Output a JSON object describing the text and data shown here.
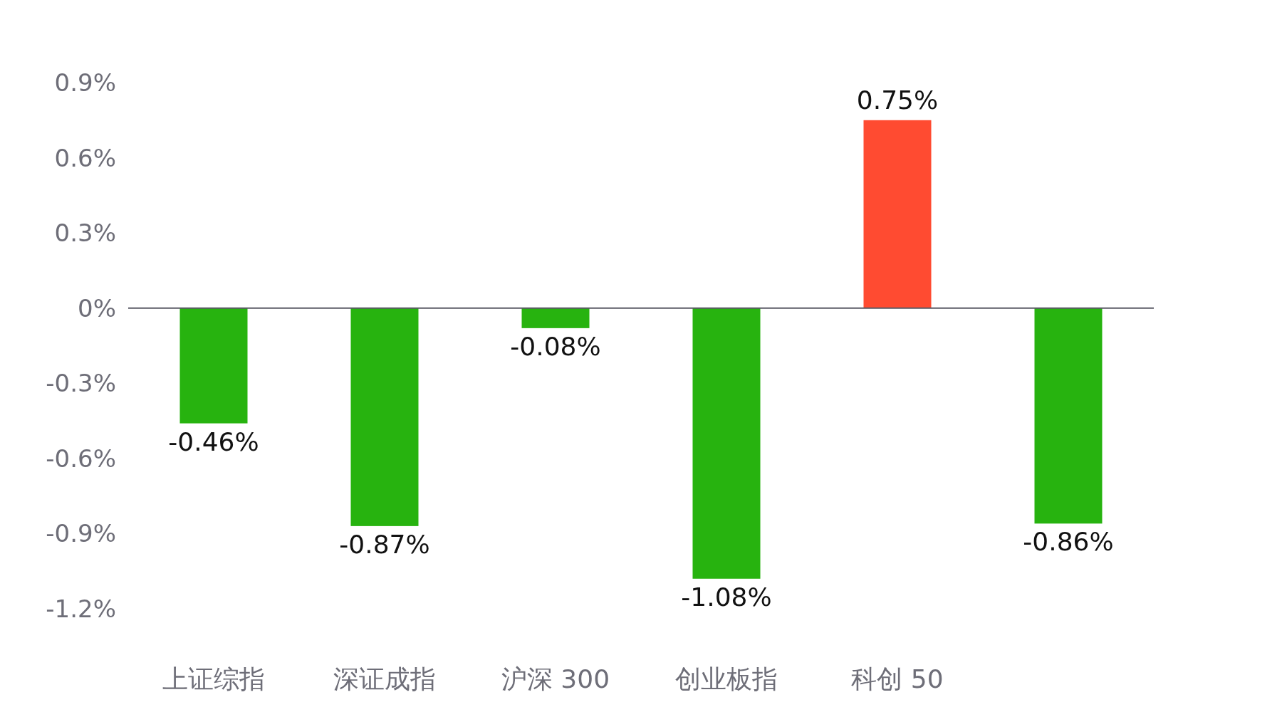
{
  "chart_data": {
    "type": "bar",
    "categories": [
      "上证综指",
      "深证成指",
      "沪深 300",
      "创业板指",
      "科创 50",
      null
    ],
    "values": [
      -0.46,
      -0.87,
      -0.08,
      -1.08,
      0.75,
      -0.86
    ],
    "colors": [
      "#27b30f",
      "#27b30f",
      "#27b30f",
      "#27b30f",
      "#ff4b31",
      "#27b30f"
    ],
    "value_labels": [
      "-0.46%",
      "-0.87%",
      "-0.08%",
      "-1.08%",
      "0.75%",
      "-0.86%"
    ],
    "ylim": [
      -1.2,
      0.9
    ],
    "yticks": [
      {
        "value": 0.9,
        "label": "0.9%"
      },
      {
        "value": 0.6,
        "label": "0.6%"
      },
      {
        "value": 0.3,
        "label": "0.3%"
      },
      {
        "value": 0,
        "label": "0%"
      },
      {
        "value": -0.3,
        "label": "-0.3%"
      },
      {
        "value": -0.6,
        "label": "-0.6%"
      },
      {
        "value": -0.9,
        "label": "-0.9%"
      },
      {
        "value": -1.2,
        "label": "-1.2%"
      }
    ]
  }
}
